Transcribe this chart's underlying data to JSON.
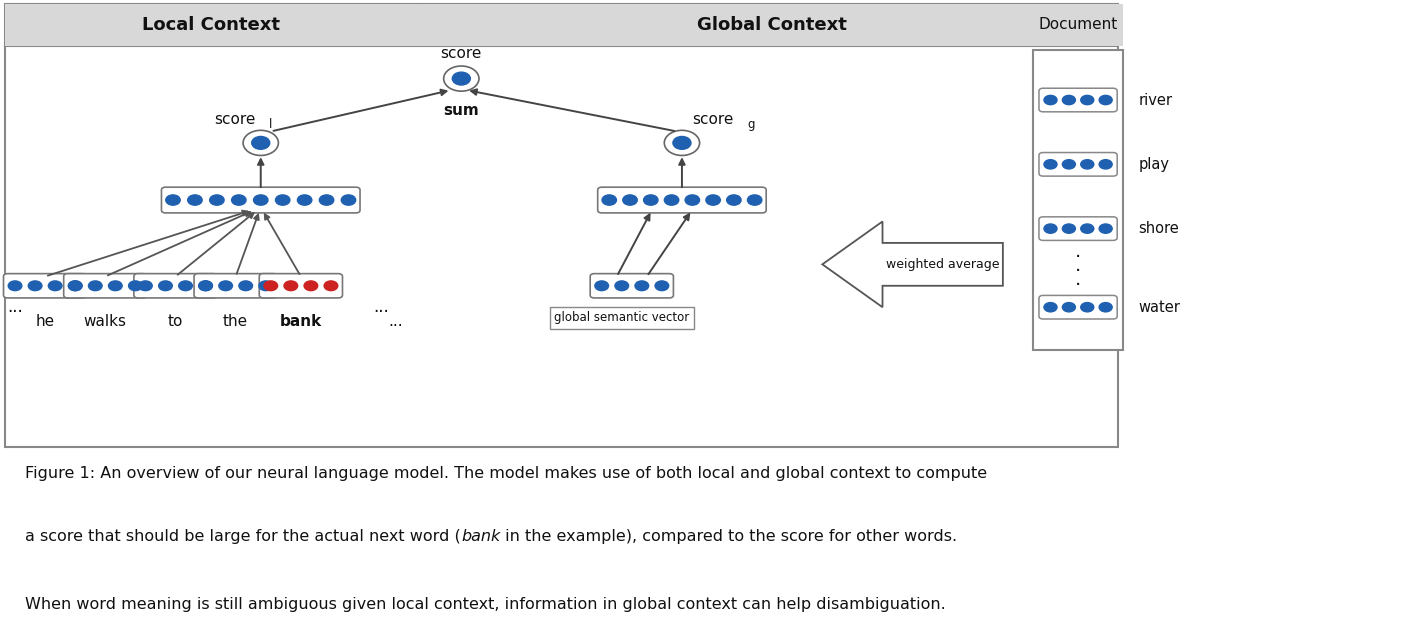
{
  "fig_width": 14.04,
  "fig_height": 6.43,
  "dpi": 100,
  "bg_color": "#ffffff",
  "header_bg": "#e0e0e0",
  "box_edge": "#555555",
  "blue_dot": "#2060b0",
  "red_dot": "#cc2222",
  "arrow_color": "#444444",
  "text_color": "#111111",
  "title_local": "Local Context",
  "title_global": "Global Context",
  "score_label": "score",
  "sum_label": "sum",
  "score_l_label": "score",
  "score_l_sub": "l",
  "score_g_label": "score",
  "score_g_sub": "g",
  "gsv_label": "global semantic vector",
  "wa_label": "weighted average",
  "doc_label": "Document",
  "doc_words": [
    "river",
    "play",
    "shore",
    "water"
  ],
  "caption_line1": "Figure 1: An overview of our neural language model. The model makes use of both local and global context to compute",
  "caption_line2a": "a score that should be large for the actual next word (",
  "caption_line2b": "bank",
  "caption_line2c": " in the example), compared to the score for other words.",
  "caption_line3": "When word meaning is still ambiguous given local context, information in global context can help disambiguation."
}
